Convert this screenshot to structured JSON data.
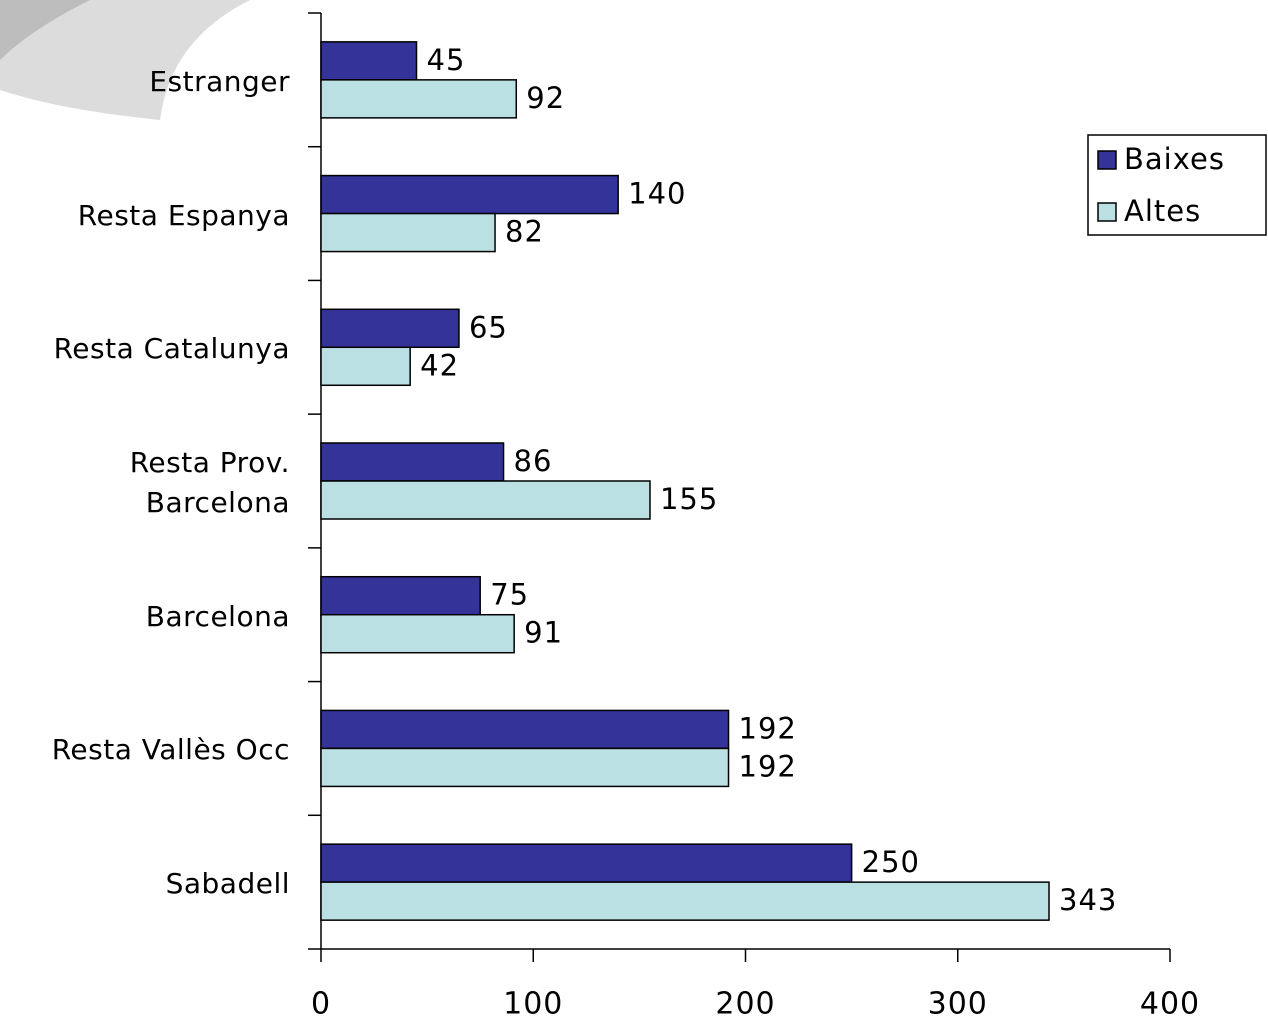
{
  "chart_data": {
    "type": "hbar",
    "categories": [
      "Estranger",
      "Resta Espanya",
      "Resta Catalunya",
      "Resta Prov.\nBarcelona",
      "Barcelona",
      "Resta Vallès Occ",
      "Sabadell"
    ],
    "series": [
      {
        "name": "Baixes",
        "color": "#333399",
        "values": [
          45,
          140,
          65,
          86,
          75,
          192,
          250
        ]
      },
      {
        "name": "Altes",
        "color": "#bbe0e3",
        "values": [
          92,
          82,
          42,
          155,
          91,
          192,
          343
        ]
      }
    ],
    "xlim": [
      0,
      400
    ],
    "xticks": [
      0,
      100,
      200,
      300,
      400
    ],
    "legend": "right"
  }
}
